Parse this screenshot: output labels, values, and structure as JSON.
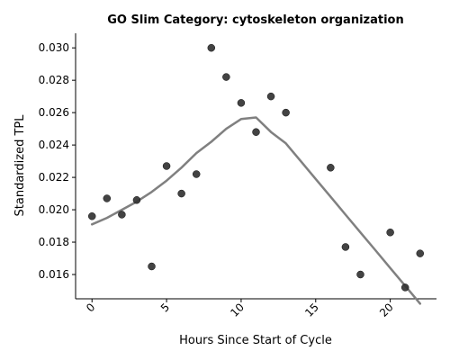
{
  "chart_data": {
    "type": "scatter",
    "title": "GO Slim Category: cytoskeleton organization",
    "xlabel": "Hours Since Start of Cycle",
    "ylabel": "Standardized TPL",
    "xlim": [
      -1.1,
      23.1
    ],
    "ylim": [
      0.0145,
      0.0309
    ],
    "x_ticks": [
      0,
      5,
      10,
      15,
      20
    ],
    "x_tick_labels": [
      "0",
      "5",
      "10",
      "15",
      "20"
    ],
    "y_ticks": [
      0.016,
      0.018,
      0.02,
      0.022,
      0.024,
      0.026,
      0.028,
      0.03
    ],
    "y_tick_labels": [
      "0.016",
      "0.018",
      "0.020",
      "0.022",
      "0.024",
      "0.026",
      "0.028",
      "0.030"
    ],
    "grid": false,
    "series": [
      {
        "type": "scatter",
        "color": "#333333",
        "x": [
          0,
          1,
          2,
          3,
          4,
          5,
          6,
          7,
          8,
          9,
          10,
          11,
          12,
          13,
          16,
          17,
          18,
          20,
          21,
          22
        ],
        "y": [
          0.0196,
          0.0207,
          0.0197,
          0.0206,
          0.0165,
          0.0227,
          0.021,
          0.0222,
          0.03,
          0.0282,
          0.0266,
          0.0248,
          0.027,
          0.026,
          0.0226,
          0.0177,
          0.016,
          0.0186,
          0.0152,
          0.0173
        ]
      },
      {
        "type": "line",
        "color": "#808080",
        "x": [
          0,
          1,
          2,
          3,
          4,
          5,
          6,
          7,
          8,
          9,
          10,
          11,
          12,
          13,
          14,
          15,
          16,
          17,
          18,
          19,
          20,
          21,
          22
        ],
        "y": [
          0.0191,
          0.0195,
          0.02,
          0.0205,
          0.0211,
          0.0218,
          0.0226,
          0.0235,
          0.0242,
          0.025,
          0.0256,
          0.0257,
          0.0248,
          0.0241,
          0.023,
          0.0219,
          0.0208,
          0.0197,
          0.0186,
          0.0175,
          0.0164,
          0.0153,
          0.0142
        ]
      }
    ]
  }
}
